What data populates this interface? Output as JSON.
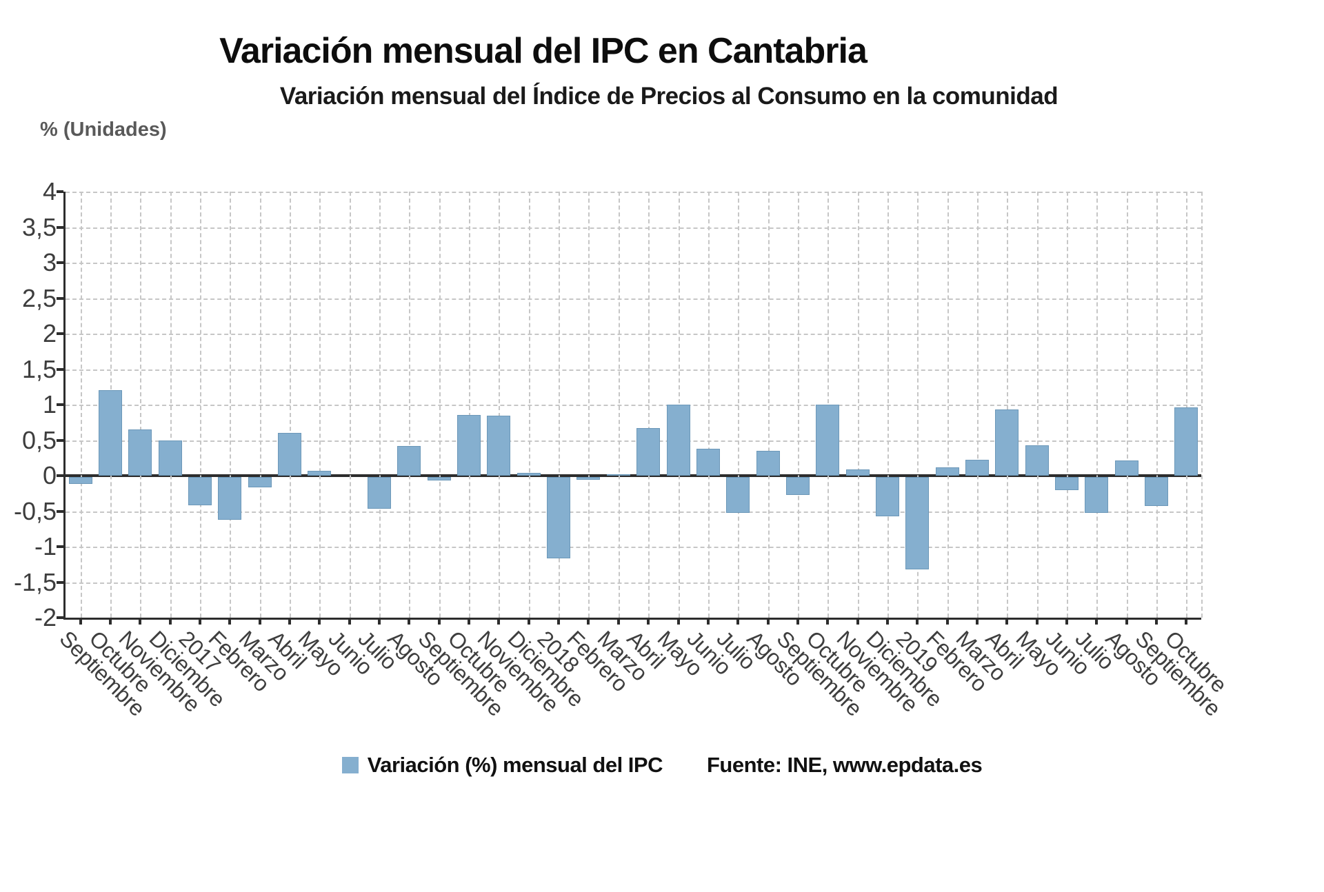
{
  "header": {
    "title": "Variación mensual del IPC en Cantabria",
    "subtitle": "Variación mensual del Índice de Precios al Consumo en la comunidad"
  },
  "chart_data": {
    "type": "bar",
    "title": "Variación mensual del IPC en Cantabria",
    "subtitle": "Variación mensual del Índice de Precios al Consumo en la comunidad",
    "ylabel": "% (Unidades)",
    "xlabel": "",
    "ylim": [
      -2,
      4
    ],
    "ytick_step": 0.5,
    "ytick_labels": [
      "4",
      "3,5",
      "3",
      "2,5",
      "2",
      "1,5",
      "1",
      "0,5",
      "0",
      "-0,5",
      "-1",
      "-1,5",
      "-2"
    ],
    "grid": true,
    "xlabel_rotation_deg": 45,
    "legend_position": "bottom",
    "series_name": "Variación (%) mensual del IPC",
    "categories": [
      "Septiembre",
      "Octubre",
      "Noviembre",
      "Diciembre",
      "2017",
      "Febrero",
      "Marzo",
      "Abril",
      "Mayo",
      "Junio",
      "Julio",
      "Agosto",
      "Septiembre",
      "Octubre",
      "Noviembre",
      "Diciembre",
      "2018",
      "Febrero",
      "Marzo",
      "Abril",
      "Mayo",
      "Junio",
      "Julio",
      "Agosto",
      "Septiembre",
      "Octubre",
      "Noviembre",
      "Diciembre",
      "2019",
      "Febrero",
      "Marzo",
      "Abril",
      "Mayo",
      "Junio",
      "Julio",
      "Agosto",
      "Septiembre",
      "Octubre"
    ],
    "values": [
      -0.1,
      1.2,
      0.65,
      0.5,
      -0.4,
      -0.6,
      -0.15,
      0.6,
      0.07,
      0,
      -0.45,
      0.42,
      -0.05,
      0.85,
      0.84,
      0.04,
      -1.15,
      -0.04,
      0.02,
      0.67,
      1.0,
      0.38,
      -0.5,
      0.35,
      -0.25,
      1.0,
      0.09,
      -0.55,
      -1.3,
      0.12,
      0.22,
      0.93,
      0.43,
      -0.18,
      -0.5,
      0.21,
      -0.41,
      0.96
    ]
  },
  "footer": {
    "legend_label": "Variación (%) mensual del IPC",
    "source": "Fuente: INE, www.epdata.es"
  },
  "colors": {
    "bar_fill": "#85afcf",
    "bar_border": "#6b97b8",
    "grid": "#c6c6c6",
    "axis": "#2d2d2d",
    "title_text": "#0d0d0d",
    "axis_label_text": "#3d3d3d",
    "y_axis_title_text": "#595959"
  }
}
